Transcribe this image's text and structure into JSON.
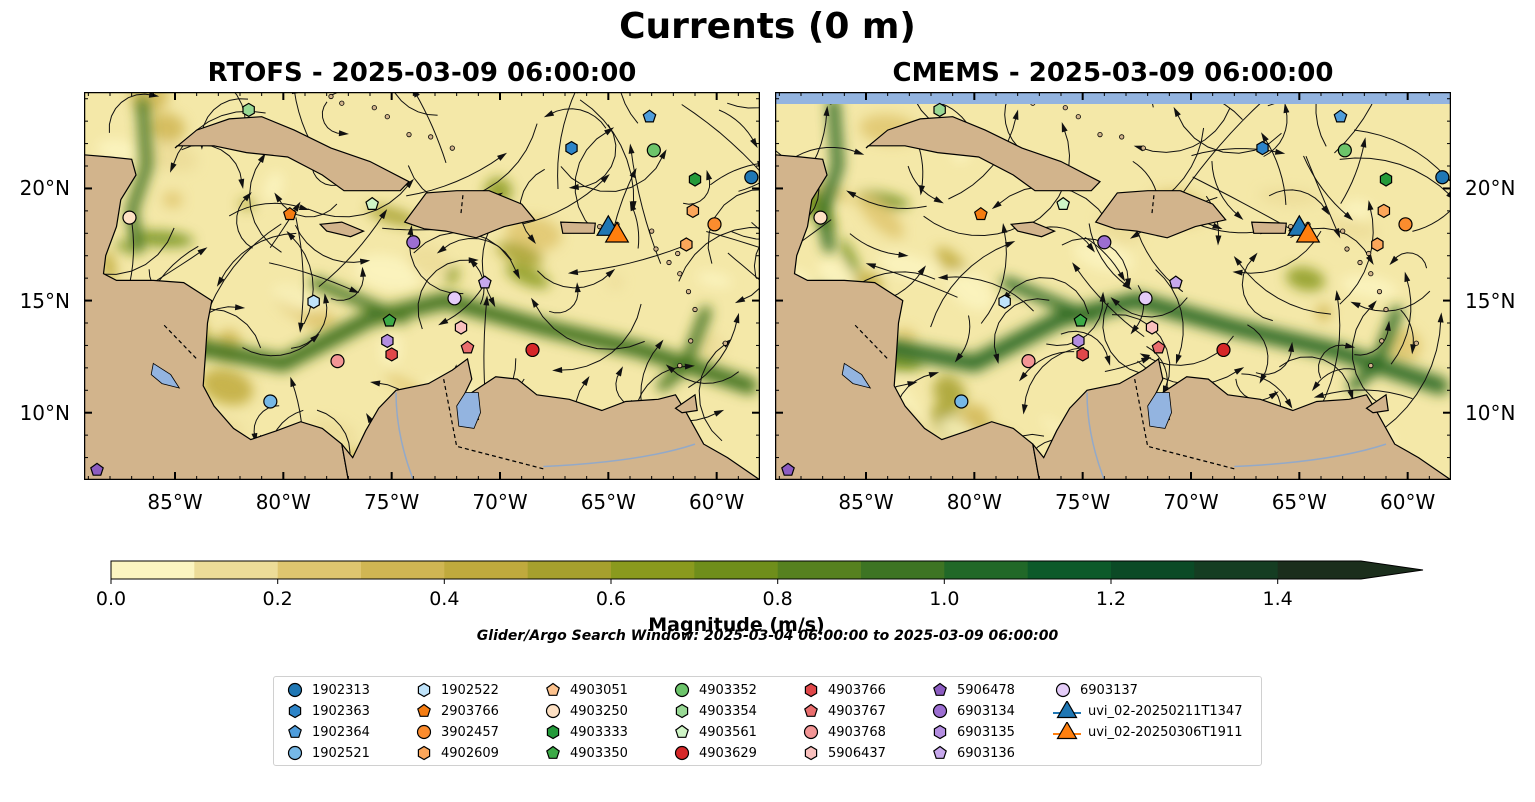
{
  "title": "Currents (0 m)",
  "panels": [
    {
      "title": "RTOFS - 2025-03-09 06:00:00"
    },
    {
      "title": "CMEMS - 2025-03-09 06:00:00"
    }
  ],
  "axes": {
    "lon_ticks": [
      "85°W",
      "80°W",
      "75°W",
      "70°W",
      "65°W",
      "60°W"
    ],
    "lat_ticks": [
      "20°N",
      "15°N",
      "10°N"
    ]
  },
  "colorbar": {
    "label": "Magnitude (m/s)",
    "ticks": [
      "0.0",
      "0.2",
      "0.4",
      "0.6",
      "0.8",
      "1.0",
      "1.2",
      "1.4"
    ],
    "range": [
      0,
      1.5
    ],
    "extend": "max",
    "colors": [
      "#fbf5c1",
      "#ecdc98",
      "#dfc66f",
      "#d0b653",
      "#c0aa3d",
      "#a6a02d",
      "#8a9a1e",
      "#6f8e1b",
      "#56811f",
      "#3d7423",
      "#216828",
      "#0c5a2a",
      "#0b4a26",
      "#153d22",
      "#1b2e1c"
    ]
  },
  "colors": {
    "land": "#d2b48c",
    "water_body": "#93b4e0",
    "ocean_base": "#f4e8a8",
    "current_strong": "#3d7a28"
  },
  "search_window": "Glider/Argo Search Window: 2025-03-04 06:00:00 to 2025-03-09 06:00:00",
  "legend": [
    {
      "label": "1902313",
      "marker": "circle",
      "color": "#1f77b4"
    },
    {
      "label": "1902363",
      "marker": "hexagon",
      "color": "#2d84c8"
    },
    {
      "label": "1902364",
      "marker": "pentagon",
      "color": "#4f9ddb"
    },
    {
      "label": "1902521",
      "marker": "circle",
      "color": "#76b8e6"
    },
    {
      "label": "1902522",
      "marker": "hexagon",
      "color": "#bfe3fa"
    },
    {
      "label": "2903766",
      "marker": "pentagon",
      "color": "#f57c11"
    },
    {
      "label": "3902457",
      "marker": "circle",
      "color": "#fb8c2e"
    },
    {
      "label": "4902609",
      "marker": "hexagon",
      "color": "#fca65a"
    },
    {
      "label": "4903051",
      "marker": "pentagon",
      "color": "#fdc28d"
    },
    {
      "label": "4903250",
      "marker": "circle",
      "color": "#fde0c3"
    },
    {
      "label": "4903333",
      "marker": "hexagon",
      "color": "#249a3a"
    },
    {
      "label": "4903350",
      "marker": "pentagon",
      "color": "#3caa47"
    },
    {
      "label": "4903352",
      "marker": "circle",
      "color": "#6cc46a"
    },
    {
      "label": "4903354",
      "marker": "hexagon",
      "color": "#98d894"
    },
    {
      "label": "4903561",
      "marker": "pentagon",
      "color": "#cff5c6"
    },
    {
      "label": "4903629",
      "marker": "circle",
      "color": "#d62728"
    },
    {
      "label": "4903766",
      "marker": "hexagon",
      "color": "#e0484a"
    },
    {
      "label": "4903767",
      "marker": "pentagon",
      "color": "#ea6e6e"
    },
    {
      "label": "4903768",
      "marker": "circle",
      "color": "#f39595"
    },
    {
      "label": "5906437",
      "marker": "hexagon",
      "color": "#f9c0bd"
    },
    {
      "label": "5906478",
      "marker": "pentagon",
      "color": "#8c5cc1"
    },
    {
      "label": "6903134",
      "marker": "circle",
      "color": "#9c6ed1"
    },
    {
      "label": "6903135",
      "marker": "hexagon",
      "color": "#b38de0"
    },
    {
      "label": "6903136",
      "marker": "pentagon",
      "color": "#c7a8ec"
    },
    {
      "label": "6903137",
      "marker": "circle",
      "color": "#e4ccf8"
    },
    {
      "label": "uvi_02-20250211T1347",
      "marker": "triangle-line",
      "color": "#1f77b4"
    },
    {
      "label": "uvi_02-20250306T1911",
      "marker": "triangle-line",
      "color": "#ff7f0e"
    }
  ],
  "floats": [
    {
      "label": "1902313",
      "lon": -58.4,
      "lat": 20.5
    },
    {
      "label": "1902363",
      "lon": -66.7,
      "lat": 21.8
    },
    {
      "label": "1902364",
      "lon": -63.1,
      "lat": 23.2
    },
    {
      "label": "1902521",
      "lon": -80.6,
      "lat": 10.5
    },
    {
      "label": "1902522",
      "lon": -78.6,
      "lat": 14.95
    },
    {
      "label": "2903766",
      "lon": -79.7,
      "lat": 18.85
    },
    {
      "label": "3902457",
      "lon": -60.1,
      "lat": 18.4
    },
    {
      "label": "4902609",
      "lon": -61.4,
      "lat": 17.5
    },
    {
      "label": "4903250",
      "lon": -87.1,
      "lat": 18.7
    },
    {
      "label": "4903333",
      "lon": -61.0,
      "lat": 20.4
    },
    {
      "label": "4903350",
      "lon": -75.1,
      "lat": 14.1
    },
    {
      "label": "4903352",
      "lon": -62.9,
      "lat": 21.7
    },
    {
      "label": "4903354",
      "lon": -81.6,
      "lat": 23.5
    },
    {
      "label": "4903561",
      "lon": -75.9,
      "lat": 19.3
    },
    {
      "label": "4903629",
      "lon": -68.5,
      "lat": 12.8
    },
    {
      "label": "4903766",
      "lon": -75.0,
      "lat": 12.6
    },
    {
      "label": "4903767",
      "lon": -71.5,
      "lat": 12.9
    },
    {
      "label": "4903768",
      "lon": -77.5,
      "lat": 12.3
    },
    {
      "label": "5906437",
      "lon": -71.8,
      "lat": 13.8
    },
    {
      "label": "5906478",
      "lon": -88.6,
      "lat": 7.45
    },
    {
      "label": "6903134",
      "lon": -74.0,
      "lat": 17.6
    },
    {
      "label": "6903135",
      "lon": -75.2,
      "lat": 13.2
    },
    {
      "label": "6903136",
      "lon": -70.7,
      "lat": 15.8
    },
    {
      "label": "6903137",
      "lon": -72.1,
      "lat": 15.1
    },
    {
      "label": "4902609",
      "lon": -61.1,
      "lat": 19.0
    }
  ],
  "gliders": [
    {
      "label": "uvi_02-20250211T1347",
      "lon": -65.0,
      "lat": 18.2
    },
    {
      "label": "uvi_02-20250306T1911",
      "lon": -64.6,
      "lat": 17.9
    }
  ]
}
